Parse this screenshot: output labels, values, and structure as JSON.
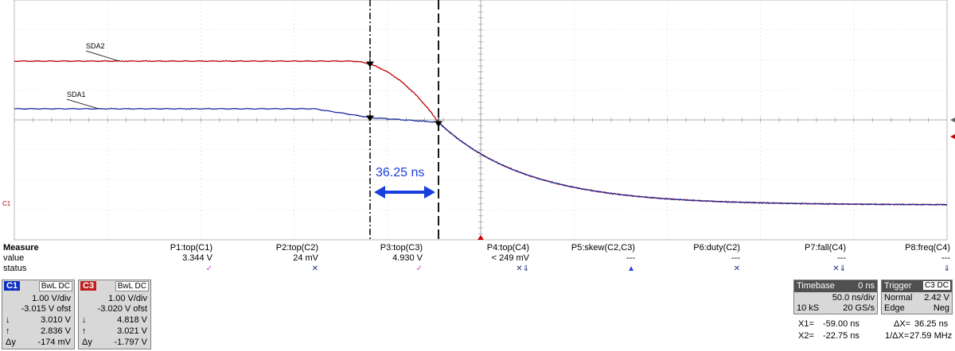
{
  "waveform": {
    "trace_labels": {
      "sda2": "SDA2",
      "sda1": "SDA1"
    },
    "channel_marker": "C1",
    "annotation": "36.25 ns",
    "colors": {
      "sda2": "#c00000",
      "sda1": "#1c2ea0",
      "annotation": "#1a3fe0",
      "grid": "#b8b8b8"
    }
  },
  "measure": {
    "labels": [
      "Measure",
      "value",
      "status"
    ],
    "params": [
      {
        "name": "P1:top(C1)",
        "value": "3.344 V",
        "status": "✓"
      },
      {
        "name": "P2:top(C2)",
        "value": "24 mV",
        "status": "✕"
      },
      {
        "name": "P3:top(C3)",
        "value": "4.930 V",
        "status": "✓"
      },
      {
        "name": "P4:top(C4)",
        "value": "< 249 mV",
        "status": "✕⇓"
      },
      {
        "name": "P5:skew(C2,C3)",
        "value": "---",
        "status": "▲"
      },
      {
        "name": "P6:duty(C2)",
        "value": "---",
        "status": "✕"
      },
      {
        "name": "P7:fall(C4)",
        "value": "---",
        "status": "✕⇓"
      },
      {
        "name": "P8:freq(C4)",
        "value": "---",
        "status": "⇓"
      }
    ]
  },
  "channels": [
    {
      "tag": "C1",
      "flags": "BwL DC",
      "vdiv": "1.00 V/div",
      "ofst": "-3.015 V ofst",
      "down": "3.010 V",
      "up": "2.836 V",
      "dy": "-174 mV",
      "color": "#1030c0"
    },
    {
      "tag": "C3",
      "flags": "BwL DC",
      "vdiv": "1.00 V/div",
      "ofst": "-3.020 V ofst",
      "down": "4.818 V",
      "up": "3.021 V",
      "dy": "-1.797 V",
      "color": "#c02020"
    }
  ],
  "symbols": {
    "down": "↓",
    "up": "↑",
    "dy": "Δy"
  },
  "timebase": {
    "label": "Timebase",
    "delay": "0 ns",
    "tdiv": "50.0 ns/div",
    "samples": "10 kS",
    "rate": "20 GS/s"
  },
  "trigger": {
    "label": "Trigger",
    "source": "C3 DC",
    "mode": "Normal",
    "level": "2.42 V",
    "type": "Edge",
    "slope": "Neg"
  },
  "cursors": {
    "x1_label": "X1=",
    "x1": "-59.00 ns",
    "x2_label": "X2=",
    "x2": "-22.75 ns",
    "dx_label": "ΔX=",
    "dx": "36.25 ns",
    "inv_label": "1/ΔX=",
    "inv": "27.59 MHz"
  }
}
